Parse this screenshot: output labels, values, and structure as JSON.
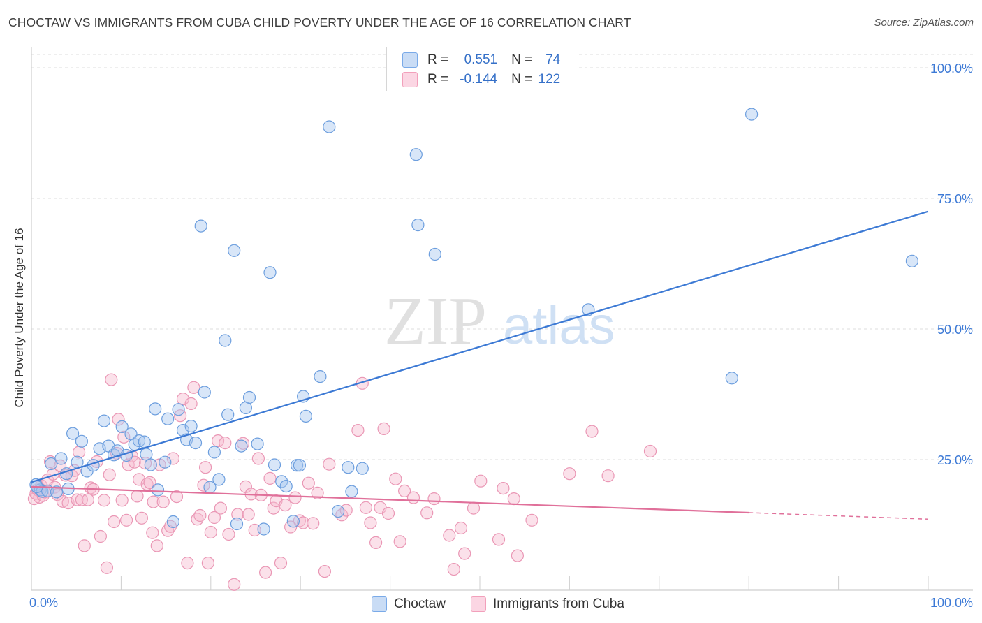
{
  "header": {
    "title": "CHOCTAW VS IMMIGRANTS FROM CUBA CHILD POVERTY UNDER THE AGE OF 16 CORRELATION CHART",
    "source": "Source: ZipAtlas.com"
  },
  "watermark": {
    "zip": "ZIP",
    "atlas": "atlas"
  },
  "legend_top": {
    "rows": [
      {
        "r_label": "R =",
        "r_value": "0.551",
        "n_label": "N =",
        "n_value": "74",
        "color": "#7aaae8"
      },
      {
        "r_label": "R =",
        "r_value": "-0.144",
        "n_label": "N =",
        "n_value": "122",
        "color": "#f2a0bb"
      }
    ]
  },
  "legend_bottom": {
    "items": [
      {
        "label": "Choctaw",
        "color": "#7aaae8"
      },
      {
        "label": "Immigrants from Cuba",
        "color": "#f2a0bb"
      }
    ]
  },
  "colors": {
    "blue": "#3a78d4",
    "blue_fill": "#a9c7ef",
    "pink": "#e0709a",
    "pink_fill": "#f6bcd0",
    "tick_label": "#3d7ad6",
    "grid": "#dddddd"
  },
  "chart_data": {
    "type": "scatter",
    "title": "CHOCTAW VS IMMIGRANTS FROM CUBA CHILD POVERTY UNDER THE AGE OF 16 CORRELATION CHART",
    "xlabel": "",
    "ylabel": "Child Poverty Under the Age of 16",
    "xlim": [
      0,
      100
    ],
    "ylim": [
      0,
      100
    ],
    "x_tick_labels": [
      {
        "value": 0,
        "label": "0.0%"
      },
      {
        "value": 100,
        "label": "100.0%"
      }
    ],
    "y_tick_labels": [
      {
        "value": 25,
        "label": "25.0%"
      },
      {
        "value": 50,
        "label": "50.0%"
      },
      {
        "value": 75,
        "label": "75.0%"
      },
      {
        "value": 100,
        "label": "100.0%"
      }
    ],
    "grid": true,
    "series": [
      {
        "name": "Choctaw",
        "r": 0.551,
        "n": 74,
        "trend": {
          "x": [
            0,
            100
          ],
          "y": [
            20.7,
            72.5
          ]
        },
        "points": [
          [
            0.5,
            20.2
          ],
          [
            1.0,
            19.2
          ],
          [
            1.2,
            18.9
          ],
          [
            1.8,
            19.0
          ],
          [
            2.2,
            24.2
          ],
          [
            2.8,
            18.8
          ],
          [
            3.3,
            25.2
          ],
          [
            3.9,
            22.3
          ],
          [
            4.1,
            19.4
          ],
          [
            4.6,
            30.0
          ],
          [
            5.1,
            24.5
          ],
          [
            5.6,
            28.5
          ],
          [
            6.2,
            22.8
          ],
          [
            6.9,
            23.9
          ],
          [
            7.6,
            27.1
          ],
          [
            8.1,
            32.4
          ],
          [
            8.6,
            27.6
          ],
          [
            9.2,
            25.9
          ],
          [
            9.6,
            26.7
          ],
          [
            10.1,
            31.3
          ],
          [
            10.6,
            25.8
          ],
          [
            11.1,
            29.9
          ],
          [
            11.5,
            27.9
          ],
          [
            12.0,
            28.6
          ],
          [
            12.6,
            28.4
          ],
          [
            12.8,
            26.0
          ],
          [
            13.3,
            24.0
          ],
          [
            13.8,
            34.7
          ],
          [
            14.1,
            19.2
          ],
          [
            14.9,
            24.5
          ],
          [
            15.2,
            32.8
          ],
          [
            15.8,
            13.1
          ],
          [
            16.4,
            34.6
          ],
          [
            16.9,
            30.6
          ],
          [
            17.3,
            28.8
          ],
          [
            17.8,
            31.4
          ],
          [
            18.3,
            28.2
          ],
          [
            18.9,
            69.7
          ],
          [
            19.3,
            37.9
          ],
          [
            19.9,
            19.7
          ],
          [
            20.4,
            26.4
          ],
          [
            20.9,
            21.2
          ],
          [
            21.6,
            47.8
          ],
          [
            21.9,
            33.6
          ],
          [
            22.6,
            65.0
          ],
          [
            22.9,
            12.7
          ],
          [
            23.4,
            27.6
          ],
          [
            23.9,
            34.9
          ],
          [
            24.3,
            36.9
          ],
          [
            25.2,
            28.0
          ],
          [
            25.9,
            11.7
          ],
          [
            26.6,
            60.8
          ],
          [
            27.1,
            24.0
          ],
          [
            27.9,
            20.8
          ],
          [
            28.4,
            19.9
          ],
          [
            29.2,
            13.2
          ],
          [
            29.6,
            23.9
          ],
          [
            29.9,
            23.9
          ],
          [
            30.3,
            37.1
          ],
          [
            30.6,
            33.3
          ],
          [
            32.2,
            40.9
          ],
          [
            33.2,
            88.7
          ],
          [
            34.2,
            15.1
          ],
          [
            35.3,
            23.5
          ],
          [
            35.7,
            18.9
          ],
          [
            36.9,
            23.3
          ],
          [
            42.9,
            83.4
          ],
          [
            43.1,
            69.9
          ],
          [
            45.0,
            64.3
          ],
          [
            62.1,
            53.7
          ],
          [
            78.1,
            40.6
          ],
          [
            80.3,
            91.1
          ],
          [
            98.2,
            63.0
          ],
          [
            0.6,
            19.8
          ]
        ]
      },
      {
        "name": "Immigrants from Cuba",
        "r": -0.144,
        "n": 122,
        "trend": {
          "x": [
            0,
            100
          ],
          "y": [
            19.8,
            13.6
          ]
        },
        "points": [
          [
            0.3,
            17.5
          ],
          [
            0.5,
            18.5
          ],
          [
            0.7,
            19.2
          ],
          [
            0.9,
            17.8
          ],
          [
            1.1,
            20.0
          ],
          [
            1.3,
            18.1
          ],
          [
            1.5,
            18.8
          ],
          [
            1.8,
            21.1
          ],
          [
            2.1,
            24.6
          ],
          [
            2.4,
            22.2
          ],
          [
            2.6,
            19.7
          ],
          [
            2.9,
            18.3
          ],
          [
            3.2,
            23.8
          ],
          [
            3.5,
            17.0
          ],
          [
            3.8,
            22.0
          ],
          [
            4.1,
            16.7
          ],
          [
            4.5,
            21.9
          ],
          [
            4.8,
            22.9
          ],
          [
            5.1,
            17.3
          ],
          [
            5.3,
            26.4
          ],
          [
            5.6,
            17.3
          ],
          [
            5.9,
            8.5
          ],
          [
            6.3,
            17.3
          ],
          [
            6.6,
            19.6
          ],
          [
            6.9,
            19.3
          ],
          [
            7.3,
            24.6
          ],
          [
            7.7,
            10.3
          ],
          [
            8.1,
            17.2
          ],
          [
            8.4,
            4.3
          ],
          [
            8.7,
            22.1
          ],
          [
            8.9,
            40.3
          ],
          [
            9.2,
            13.1
          ],
          [
            9.5,
            26.2
          ],
          [
            9.7,
            32.7
          ],
          [
            10.1,
            17.2
          ],
          [
            10.3,
            29.3
          ],
          [
            10.6,
            13.4
          ],
          [
            10.8,
            24.0
          ],
          [
            11.2,
            25.7
          ],
          [
            11.5,
            24.5
          ],
          [
            11.8,
            18.0
          ],
          [
            12.0,
            21.2
          ],
          [
            12.3,
            13.8
          ],
          [
            12.7,
            24.3
          ],
          [
            12.9,
            20.3
          ],
          [
            13.2,
            20.6
          ],
          [
            13.5,
            11.0
          ],
          [
            13.6,
            16.9
          ],
          [
            14.0,
            8.5
          ],
          [
            14.3,
            24.0
          ],
          [
            14.7,
            16.9
          ],
          [
            15.2,
            11.4
          ],
          [
            15.5,
            12.2
          ],
          [
            15.8,
            25.2
          ],
          [
            16.2,
            17.9
          ],
          [
            16.6,
            33.4
          ],
          [
            16.9,
            36.6
          ],
          [
            17.4,
            5.2
          ],
          [
            17.8,
            35.7
          ],
          [
            18.1,
            38.8
          ],
          [
            18.5,
            13.6
          ],
          [
            18.8,
            14.3
          ],
          [
            19.2,
            20.1
          ],
          [
            19.4,
            23.5
          ],
          [
            19.7,
            5.2
          ],
          [
            20.0,
            11.1
          ],
          [
            20.4,
            13.9
          ],
          [
            20.8,
            28.6
          ],
          [
            21.1,
            15.7
          ],
          [
            21.6,
            28.2
          ],
          [
            22.0,
            10.7
          ],
          [
            22.6,
            1.1
          ],
          [
            23.0,
            14.5
          ],
          [
            23.6,
            28.1
          ],
          [
            23.9,
            19.8
          ],
          [
            24.2,
            14.5
          ],
          [
            24.5,
            18.4
          ],
          [
            24.9,
            11.5
          ],
          [
            25.3,
            25.2
          ],
          [
            25.6,
            18.2
          ],
          [
            26.1,
            3.4
          ],
          [
            26.6,
            21.4
          ],
          [
            27.0,
            15.7
          ],
          [
            27.3,
            17.1
          ],
          [
            27.8,
            5.2
          ],
          [
            28.3,
            16.3
          ],
          [
            28.9,
            12.1
          ],
          [
            29.4,
            17.7
          ],
          [
            29.9,
            13.3
          ],
          [
            30.3,
            12.9
          ],
          [
            30.9,
            20.5
          ],
          [
            31.4,
            12.8
          ],
          [
            31.9,
            18.6
          ],
          [
            32.7,
            3.6
          ],
          [
            33.2,
            24.1
          ],
          [
            34.6,
            14.4
          ],
          [
            35.1,
            15.3
          ],
          [
            36.4,
            30.6
          ],
          [
            36.9,
            39.6
          ],
          [
            37.3,
            15.8
          ],
          [
            37.8,
            12.9
          ],
          [
            38.4,
            9.1
          ],
          [
            38.9,
            15.8
          ],
          [
            39.3,
            30.9
          ],
          [
            39.8,
            14.7
          ],
          [
            40.6,
            21.3
          ],
          [
            41.1,
            9.3
          ],
          [
            41.6,
            19.0
          ],
          [
            42.6,
            17.7
          ],
          [
            44.1,
            14.8
          ],
          [
            44.9,
            17.5
          ],
          [
            46.6,
            10.5
          ],
          [
            47.1,
            4.0
          ],
          [
            47.9,
            11.9
          ],
          [
            48.3,
            7.0
          ],
          [
            49.3,
            15.7
          ],
          [
            50.1,
            20.9
          ],
          [
            52.1,
            9.7
          ],
          [
            52.6,
            19.5
          ],
          [
            53.8,
            17.5
          ],
          [
            54.2,
            6.6
          ],
          [
            55.8,
            13.4
          ],
          [
            60.0,
            22.3
          ],
          [
            62.5,
            30.4
          ],
          [
            64.3,
            21.9
          ],
          [
            69.0,
            26.6
          ]
        ]
      }
    ]
  }
}
